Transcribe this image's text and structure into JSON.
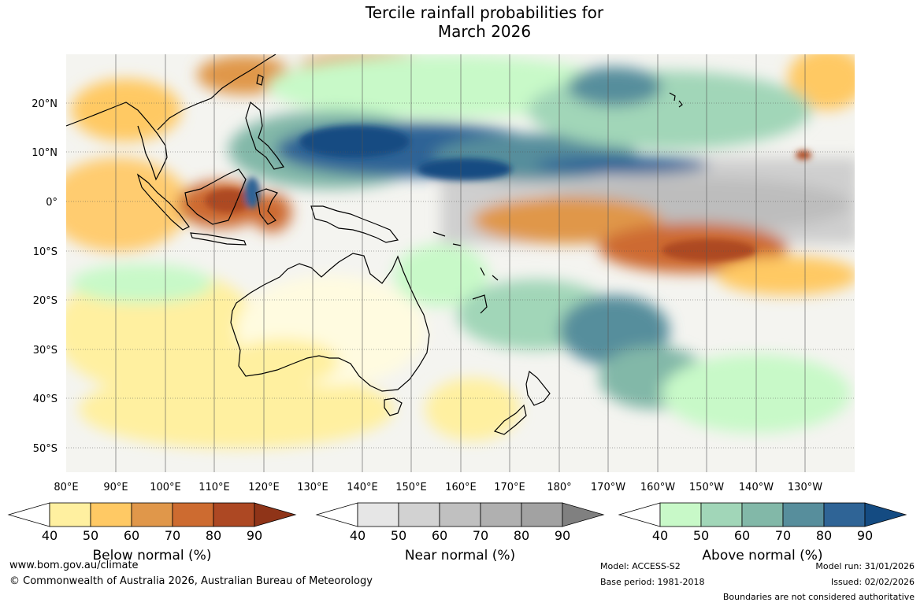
{
  "title_line1": "Tercile rainfall probabilities for",
  "title_line2": "March 2026",
  "map": {
    "lat_labels": [
      "20°N",
      "10°N",
      "0°",
      "10°S",
      "20°S",
      "30°S",
      "40°S",
      "50°S"
    ],
    "lon_labels": [
      "80°E",
      "90°E",
      "100°E",
      "110°E",
      "120°E",
      "130°E",
      "140°E",
      "150°E",
      "160°E",
      "170°E",
      "180°",
      "170°W",
      "160°W",
      "150°W",
      "140°W",
      "130°W"
    ]
  },
  "legend": {
    "below": {
      "label": "Below normal (%)",
      "ticks": [
        "40",
        "50",
        "60",
        "70",
        "80",
        "90"
      ],
      "colors": [
        "#ffffff",
        "#fff0a0",
        "#ffc964",
        "#e0974a",
        "#cd6b30",
        "#ad4823",
        "#8f3418"
      ]
    },
    "near": {
      "label": "Near normal (%)",
      "ticks": [
        "40",
        "50",
        "60",
        "70",
        "80",
        "90"
      ],
      "colors": [
        "#ffffff",
        "#e6e6e6",
        "#d2d2d2",
        "#c0c0c0",
        "#b0b0b0",
        "#a2a2a2",
        "#808080"
      ]
    },
    "above": {
      "label": "Above normal (%)",
      "ticks": [
        "40",
        "50",
        "60",
        "70",
        "80",
        "90"
      ],
      "colors": [
        "#ffffff",
        "#c8f9c8",
        "#a1d6b8",
        "#82b8a8",
        "#578e9c",
        "#2f6496",
        "#144b82"
      ]
    }
  },
  "footer": {
    "url": "www.bom.gov.au/climate",
    "copyright": "© Commonwealth of Australia 2026, Australian Bureau of Meteorology",
    "model": "Model: ACCESS-S2",
    "base_period": "Base period: 1981-2018",
    "model_run": "Model run: 31/01/2026",
    "issued": "Issued: 02/02/2026",
    "disclaimer": "Boundaries are not considered authoritative"
  }
}
